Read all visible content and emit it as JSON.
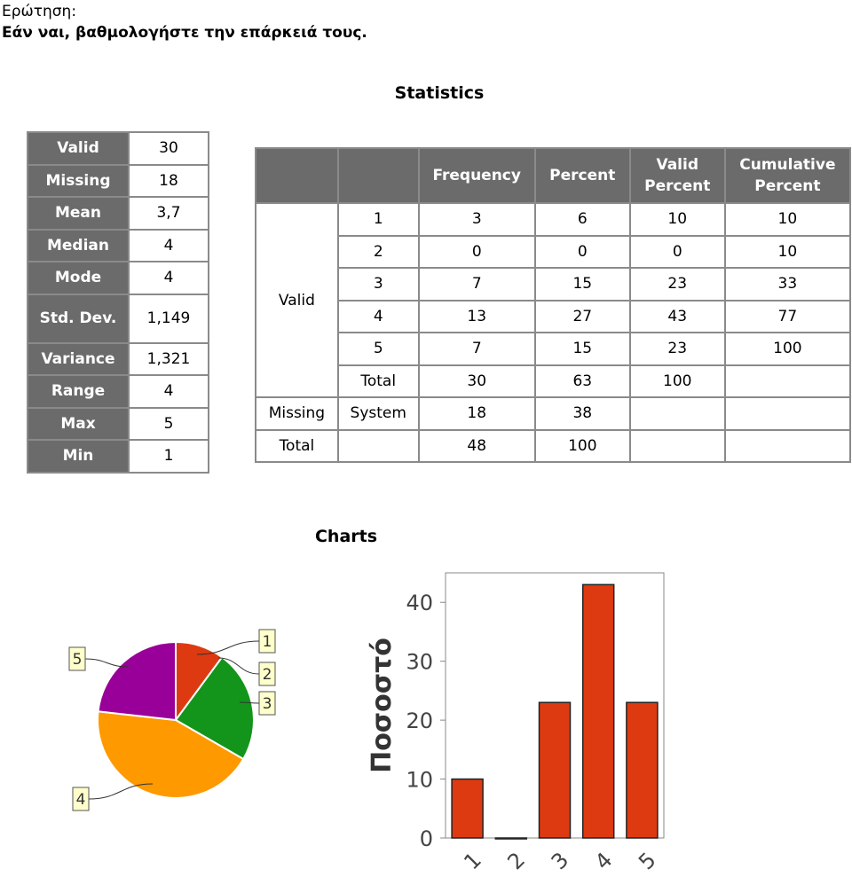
{
  "question": {
    "label": "Ερώτηση:",
    "text": "Εάν ναι, βαθμολογήστε την επάρκειά τους."
  },
  "statistics": {
    "title": "Statistics",
    "rows": [
      {
        "key": "Valid",
        "value": "30"
      },
      {
        "key": "Missing",
        "value": "18"
      },
      {
        "key": "Mean",
        "value": "3,7"
      },
      {
        "key": "Median",
        "value": "4"
      },
      {
        "key": "Mode",
        "value": "4"
      },
      {
        "key": "Std. Dev.",
        "value": "1,149"
      },
      {
        "key": "Variance",
        "value": "1,321"
      },
      {
        "key": "Range",
        "value": "4"
      },
      {
        "key": "Max",
        "value": "5"
      },
      {
        "key": "Min",
        "value": "1"
      }
    ]
  },
  "frequency_table": {
    "headers": [
      "",
      "",
      "Frequency",
      "Percent",
      "Valid Percent",
      "Cumulative Percent"
    ],
    "valid_label": "Valid",
    "valid_rows": [
      [
        "1",
        "3",
        "6",
        "10",
        "10"
      ],
      [
        "2",
        "0",
        "0",
        "0",
        "10"
      ],
      [
        "3",
        "7",
        "15",
        "23",
        "33"
      ],
      [
        "4",
        "13",
        "27",
        "43",
        "77"
      ],
      [
        "5",
        "7",
        "15",
        "23",
        "100"
      ],
      [
        "Total",
        "30",
        "63",
        "100",
        ""
      ]
    ],
    "missing_row": [
      "Missing",
      "System",
      "18",
      "38",
      "",
      ""
    ],
    "total_row": [
      "Total",
      "",
      "48",
      "100",
      "",
      ""
    ]
  },
  "charts_title": "Charts",
  "chart_data": [
    {
      "type": "pie",
      "categories": [
        "1",
        "2",
        "3",
        "4",
        "5"
      ],
      "values": [
        10,
        0,
        23,
        43,
        23
      ],
      "colors": [
        "#dd3a11",
        "#2a6ed4",
        "#13941a",
        "#ff9900",
        "#990099"
      ],
      "legend": "callout labels"
    },
    {
      "type": "bar",
      "categories": [
        "1",
        "2",
        "3",
        "4",
        "5"
      ],
      "values": [
        10,
        0,
        23,
        43,
        23
      ],
      "ylabel": "Ποσοστό",
      "xlabel": "",
      "ylim": [
        0,
        45
      ],
      "yticks": [
        0,
        10,
        20,
        30,
        40
      ],
      "bar_color": "#dd3a11",
      "grid": false
    }
  ]
}
